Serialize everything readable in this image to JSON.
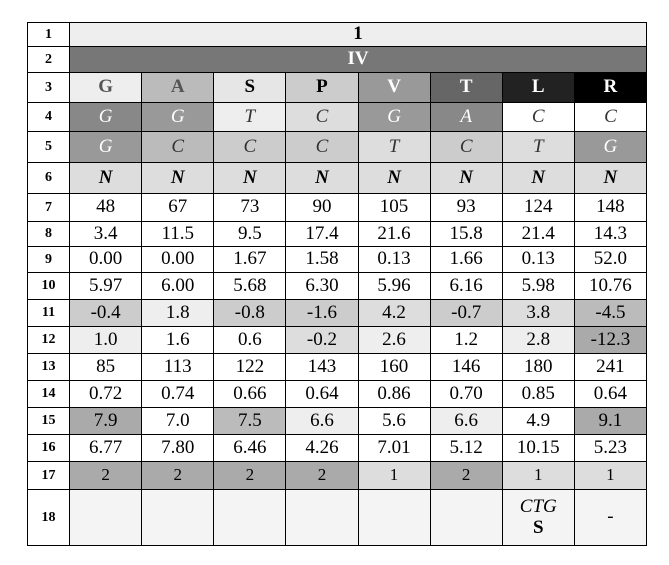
{
  "table": {
    "rows": [
      {
        "label": "1",
        "cells": [
          "1"
        ]
      },
      {
        "label": "2",
        "cells": [
          "IV"
        ]
      },
      {
        "label": "3",
        "cells": [
          "G",
          "A",
          "S",
          "P",
          "V",
          "T",
          "L",
          "R"
        ]
      },
      {
        "label": "4",
        "cells": [
          "G",
          "G",
          "T",
          "C",
          "G",
          "A",
          "C",
          "C"
        ]
      },
      {
        "label": "5",
        "cells": [
          "G",
          "C",
          "C",
          "C",
          "T",
          "C",
          "T",
          "G"
        ]
      },
      {
        "label": "6",
        "cells": [
          "N",
          "N",
          "N",
          "N",
          "N",
          "N",
          "N",
          "N"
        ]
      },
      {
        "label": "7",
        "cells": [
          "48",
          "67",
          "73",
          "90",
          "105",
          "93",
          "124",
          "148"
        ]
      },
      {
        "label": "8",
        "cells": [
          "3.4",
          "11.5",
          "9.5",
          "17.4",
          "21.6",
          "15.8",
          "21.4",
          "14.3"
        ]
      },
      {
        "label": "9",
        "cells": [
          "0.00",
          "0.00",
          "1.67",
          "1.58",
          "0.13",
          "1.66",
          "0.13",
          "52.0"
        ]
      },
      {
        "label": "10",
        "cells": [
          "5.97",
          "6.00",
          "5.68",
          "6.30",
          "5.96",
          "6.16",
          "5.98",
          "10.76"
        ]
      },
      {
        "label": "11",
        "cells": [
          "-0.4",
          "1.8",
          "-0.8",
          "-1.6",
          "4.2",
          "-0.7",
          "3.8",
          "-4.5"
        ]
      },
      {
        "label": "12",
        "cells": [
          "1.0",
          "1.6",
          "0.6",
          "-0.2",
          "2.6",
          "1.2",
          "2.8",
          "-12.3"
        ]
      },
      {
        "label": "13",
        "cells": [
          "85",
          "113",
          "122",
          "143",
          "160",
          "146",
          "180",
          "241"
        ]
      },
      {
        "label": "14",
        "cells": [
          "0.72",
          "0.74",
          "0.66",
          "0.64",
          "0.86",
          "0.70",
          "0.85",
          "0.64"
        ]
      },
      {
        "label": "15",
        "cells": [
          "7.9",
          "7.0",
          "7.5",
          "6.6",
          "5.6",
          "6.6",
          "4.9",
          "9.1"
        ]
      },
      {
        "label": "16",
        "cells": [
          "6.77",
          "7.80",
          "6.46",
          "4.26",
          "7.01",
          "5.12",
          "10.15",
          "5.23"
        ]
      },
      {
        "label": "17",
        "cells": [
          "2",
          "2",
          "2",
          "2",
          "1",
          "2",
          "1",
          "1"
        ]
      },
      {
        "label": "18",
        "cells": [
          null,
          null,
          null,
          null,
          null,
          null,
          [
            "CTG",
            "S"
          ],
          "-"
        ]
      }
    ]
  }
}
